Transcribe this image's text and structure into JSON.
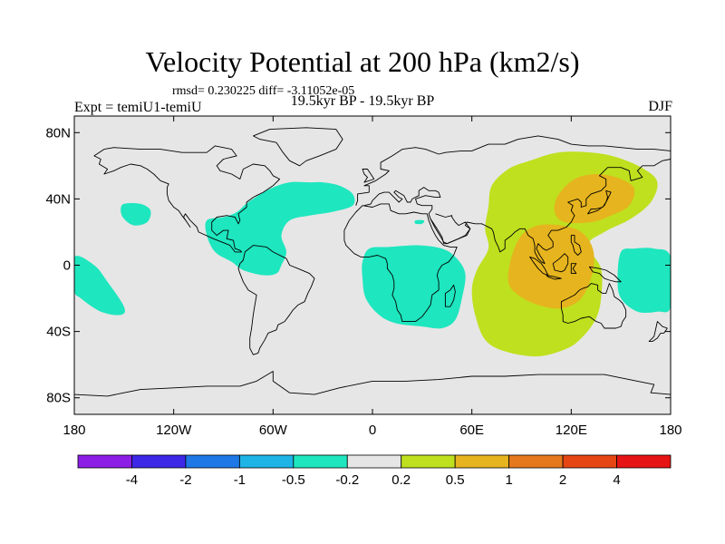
{
  "title": "Velocity Potential at 200 hPa (km2/s)",
  "stats_text": "rmsd= 0.230225 diff= -3.11052e-05",
  "expt_text": "Expt = temiU1-temiU",
  "period_text": "19.5kyr BP - 19.5kyr BP",
  "season_text": "DJF",
  "map": {
    "projection": "cylindrical equidistant",
    "lon_range": [
      -180,
      180
    ],
    "lat_range": [
      -90,
      90
    ],
    "background_color": "#e6e6e6",
    "x_ticks": [
      {
        "lon": -180,
        "label": "180"
      },
      {
        "lon": -120,
        "label": "120W"
      },
      {
        "lon": -60,
        "label": "60W"
      },
      {
        "lon": 0,
        "label": "0"
      },
      {
        "lon": 60,
        "label": "60E"
      },
      {
        "lon": 120,
        "label": "120E"
      },
      {
        "lon": 180,
        "label": "180"
      }
    ],
    "y_ticks": [
      {
        "lat": 80,
        "label": "80N"
      },
      {
        "lat": 40,
        "label": "40N"
      },
      {
        "lat": 0,
        "label": "0"
      },
      {
        "lat": -40,
        "label": "40S"
      },
      {
        "lat": -80,
        "label": "80S"
      }
    ],
    "fields": [
      {
        "name": "negative-anomaly-north-pacific",
        "value_class": "-0.5 to -0.2",
        "color": "#1ee6bf",
        "outline": [
          [
            -150,
            37
          ],
          [
            -140,
            37
          ],
          [
            -134,
            33
          ],
          [
            -136,
            26
          ],
          [
            -144,
            24
          ],
          [
            -150,
            28
          ],
          [
            -152,
            33
          ]
        ]
      },
      {
        "name": "negative-anomaly-atlantic-americas",
        "value_class": "-0.5 to -0.2",
        "color": "#1ee6bf",
        "outline": [
          [
            -100,
            27
          ],
          [
            -90,
            29
          ],
          [
            -82,
            32
          ],
          [
            -75,
            38
          ],
          [
            -62,
            46
          ],
          [
            -50,
            50
          ],
          [
            -38,
            50
          ],
          [
            -30,
            50
          ],
          [
            -20,
            48
          ],
          [
            -12,
            43
          ],
          [
            -12,
            36
          ],
          [
            -25,
            32
          ],
          [
            -38,
            30
          ],
          [
            -50,
            27
          ],
          [
            -55,
            18
          ],
          [
            -52,
            8
          ],
          [
            -55,
            0
          ],
          [
            -58,
            -5
          ],
          [
            -66,
            -6
          ],
          [
            -78,
            -3
          ],
          [
            -85,
            2
          ],
          [
            -95,
            8
          ],
          [
            -100,
            18
          ]
        ]
      },
      {
        "name": "negative-anomaly-south-pacific-west",
        "value_class": "-0.5 to -0.2",
        "color": "#1ee6bf",
        "outline": [
          [
            -180,
            5
          ],
          [
            -168,
            0
          ],
          [
            -160,
            -10
          ],
          [
            -150,
            -25
          ],
          [
            -152,
            -30
          ],
          [
            -164,
            -28
          ],
          [
            -176,
            -20
          ],
          [
            -180,
            -15
          ]
        ]
      },
      {
        "name": "negative-anomaly-africa",
        "value_class": "-0.5 to -0.2",
        "color": "#1ee6bf",
        "outline": [
          [
            -2,
            10
          ],
          [
            10,
            11
          ],
          [
            28,
            12
          ],
          [
            42,
            10
          ],
          [
            50,
            5
          ],
          [
            56,
            -5
          ],
          [
            54,
            -20
          ],
          [
            50,
            -33
          ],
          [
            42,
            -38
          ],
          [
            30,
            -37
          ],
          [
            14,
            -35
          ],
          [
            4,
            -30
          ],
          [
            -4,
            -20
          ],
          [
            -6,
            -8
          ],
          [
            -6,
            2
          ]
        ]
      },
      {
        "name": "negative-anomaly-red-sea-dot",
        "value_class": "-0.5 to -0.2",
        "color": "#1ee6bf",
        "outline": [
          [
            26,
            27
          ],
          [
            31,
            27
          ],
          [
            30,
            25
          ],
          [
            26,
            25
          ]
        ]
      },
      {
        "name": "negative-anomaly-west-pacific-east",
        "value_class": "-0.5 to -0.2",
        "color": "#1ee6bf",
        "outline": [
          [
            150,
            8
          ],
          [
            158,
            10
          ],
          [
            170,
            10
          ],
          [
            180,
            5
          ],
          [
            180,
            -25
          ],
          [
            172,
            -28
          ],
          [
            160,
            -28
          ],
          [
            150,
            -20
          ],
          [
            148,
            -8
          ]
        ]
      },
      {
        "name": "positive-anomaly-asia-indopacific",
        "value_class": "0.2 to 0.5",
        "color": "#bfe01e",
        "outline": [
          [
            72,
            48
          ],
          [
            82,
            58
          ],
          [
            95,
            63
          ],
          [
            112,
            68
          ],
          [
            132,
            68
          ],
          [
            148,
            65
          ],
          [
            164,
            58
          ],
          [
            172,
            50
          ],
          [
            168,
            38
          ],
          [
            156,
            28
          ],
          [
            140,
            20
          ],
          [
            130,
            12
          ],
          [
            138,
            -2
          ],
          [
            138,
            -20
          ],
          [
            135,
            -32
          ],
          [
            128,
            -42
          ],
          [
            118,
            -50
          ],
          [
            100,
            -55
          ],
          [
            80,
            -52
          ],
          [
            68,
            -45
          ],
          [
            62,
            -30
          ],
          [
            60,
            -15
          ],
          [
            63,
            -3
          ],
          [
            70,
            10
          ],
          [
            68,
            22
          ],
          [
            70,
            35
          ]
        ]
      },
      {
        "name": "positive-anomaly-east-asia-core",
        "value_class": "0.5 to 1",
        "color": "#e6b41e",
        "outline": [
          [
            112,
            42
          ],
          [
            122,
            52
          ],
          [
            136,
            55
          ],
          [
            150,
            52
          ],
          [
            158,
            46
          ],
          [
            155,
            36
          ],
          [
            144,
            30
          ],
          [
            132,
            26
          ],
          [
            116,
            26
          ],
          [
            110,
            32
          ]
        ]
      },
      {
        "name": "positive-anomaly-maritime-core",
        "value_class": "0.5 to 1",
        "color": "#e6b41e",
        "outline": [
          [
            90,
            18
          ],
          [
            100,
            24
          ],
          [
            114,
            24
          ],
          [
            126,
            20
          ],
          [
            133,
            10
          ],
          [
            133,
            -4
          ],
          [
            126,
            -20
          ],
          [
            114,
            -26
          ],
          [
            100,
            -24
          ],
          [
            88,
            -18
          ],
          [
            82,
            -10
          ],
          [
            84,
            5
          ]
        ]
      }
    ]
  },
  "colorbar": {
    "colors": [
      "#8c1ee6",
      "#3c28e6",
      "#1e78e6",
      "#1eb4e6",
      "#1ee6bf",
      "#e6e6e6",
      "#bfe01e",
      "#e6b41e",
      "#e6781e",
      "#e64614",
      "#e61414"
    ],
    "labels": [
      "-4",
      "-2",
      "-1",
      "-0.5",
      "-0.2",
      "0.2",
      "0.5",
      "1",
      "2",
      "4"
    ]
  }
}
